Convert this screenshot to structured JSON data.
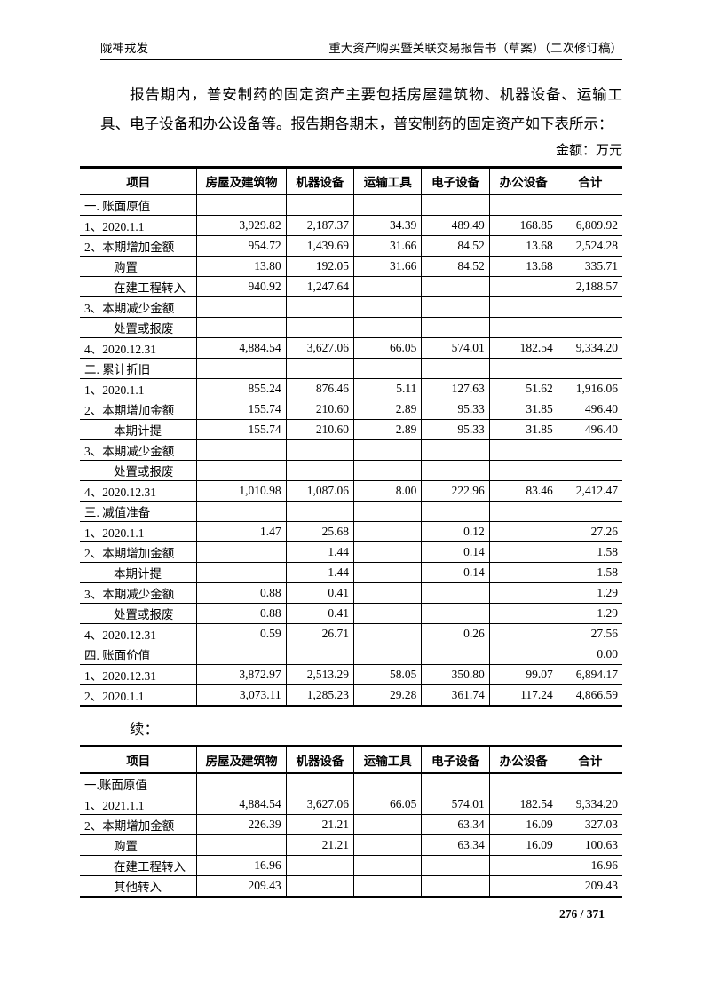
{
  "colors": {
    "ink": "#000000",
    "paper": "#ffffff"
  },
  "header": {
    "left": "陇神戎发",
    "right": "重大资产购买暨关联交易报告书（草案）（二次修订稿）"
  },
  "intro": {
    "paragraph": "报告期内，普安制药的固定资产主要包括房屋建筑物、机器设备、运输工具、电子设备和办公设备等。报告期各期末，普安制药的固定资产如下表所示：",
    "unit_label": "金额：万元"
  },
  "table1": {
    "columns": [
      "项目",
      "房屋及建筑物",
      "机器设备",
      "运输工具",
      "电子设备",
      "办公设备",
      "合计"
    ],
    "rows": [
      {
        "label": "一. 账面原值",
        "type": "section",
        "values": [
          "",
          "",
          "",
          "",
          "",
          ""
        ]
      },
      {
        "label": "1、2020.1.1",
        "type": "item",
        "values": [
          "3,929.82",
          "2,187.37",
          "34.39",
          "489.49",
          "168.85",
          "6,809.92"
        ]
      },
      {
        "label": "2、本期增加金额",
        "type": "item",
        "values": [
          "954.72",
          "1,439.69",
          "31.66",
          "84.52",
          "13.68",
          "2,524.28"
        ]
      },
      {
        "label": "购置",
        "type": "sub",
        "values": [
          "13.80",
          "192.05",
          "31.66",
          "84.52",
          "13.68",
          "335.71"
        ]
      },
      {
        "label": "在建工程转入",
        "type": "sub",
        "values": [
          "940.92",
          "1,247.64",
          "",
          "",
          "",
          "2,188.57"
        ]
      },
      {
        "label": "3、本期减少金额",
        "type": "item",
        "values": [
          "",
          "",
          "",
          "",
          "",
          ""
        ]
      },
      {
        "label": "处置或报废",
        "type": "sub",
        "values": [
          "",
          "",
          "",
          "",
          "",
          ""
        ]
      },
      {
        "label": "4、2020.12.31",
        "type": "item",
        "values": [
          "4,884.54",
          "3,627.06",
          "66.05",
          "574.01",
          "182.54",
          "9,334.20"
        ]
      },
      {
        "label": "二. 累计折旧",
        "type": "section",
        "values": [
          "",
          "",
          "",
          "",
          "",
          ""
        ]
      },
      {
        "label": "1、2020.1.1",
        "type": "item",
        "values": [
          "855.24",
          "876.46",
          "5.11",
          "127.63",
          "51.62",
          "1,916.06"
        ]
      },
      {
        "label": "2、本期增加金额",
        "type": "item",
        "values": [
          "155.74",
          "210.60",
          "2.89",
          "95.33",
          "31.85",
          "496.40"
        ]
      },
      {
        "label": "本期计提",
        "type": "sub",
        "values": [
          "155.74",
          "210.60",
          "2.89",
          "95.33",
          "31.85",
          "496.40"
        ]
      },
      {
        "label": "3、本期减少金额",
        "type": "item",
        "values": [
          "",
          "",
          "",
          "",
          "",
          ""
        ]
      },
      {
        "label": "处置或报废",
        "type": "sub",
        "values": [
          "",
          "",
          "",
          "",
          "",
          ""
        ]
      },
      {
        "label": "4、2020.12.31",
        "type": "item",
        "values": [
          "1,010.98",
          "1,087.06",
          "8.00",
          "222.96",
          "83.46",
          "2,412.47"
        ]
      },
      {
        "label": "三. 减值准备",
        "type": "section",
        "values": [
          "",
          "",
          "",
          "",
          "",
          ""
        ]
      },
      {
        "label": "1、2020.1.1",
        "type": "item",
        "values": [
          "1.47",
          "25.68",
          "",
          "0.12",
          "",
          "27.26"
        ]
      },
      {
        "label": "2、本期增加金额",
        "type": "item",
        "values": [
          "",
          "1.44",
          "",
          "0.14",
          "",
          "1.58"
        ]
      },
      {
        "label": "本期计提",
        "type": "sub",
        "values": [
          "",
          "1.44",
          "",
          "0.14",
          "",
          "1.58"
        ]
      },
      {
        "label": "3、本期减少金额",
        "type": "item",
        "values": [
          "0.88",
          "0.41",
          "",
          "",
          "",
          "1.29"
        ]
      },
      {
        "label": "处置或报废",
        "type": "sub",
        "values": [
          "0.88",
          "0.41",
          "",
          "",
          "",
          "1.29"
        ]
      },
      {
        "label": "4、2020.12.31",
        "type": "item",
        "values": [
          "0.59",
          "26.71",
          "",
          "0.26",
          "",
          "27.56"
        ]
      },
      {
        "label": "四. 账面价值",
        "type": "section",
        "values": [
          "",
          "",
          "",
          "",
          "",
          "0.00"
        ]
      },
      {
        "label": "1、2020.12.31",
        "type": "item",
        "values": [
          "3,872.97",
          "2,513.29",
          "58.05",
          "350.80",
          "99.07",
          "6,894.17"
        ]
      },
      {
        "label": "2、2020.1.1",
        "type": "item",
        "values": [
          "3,073.11",
          "1,285.23",
          "29.28",
          "361.74",
          "117.24",
          "4,866.59"
        ]
      }
    ]
  },
  "continuation_label": "续：",
  "table2": {
    "columns": [
      "项目",
      "房屋及建筑物",
      "机器设备",
      "运输工具",
      "电子设备",
      "办公设备",
      "合计"
    ],
    "rows": [
      {
        "label": "一.账面原值",
        "type": "section",
        "values": [
          "",
          "",
          "",
          "",
          "",
          ""
        ]
      },
      {
        "label": "1、2021.1.1",
        "type": "item",
        "values": [
          "4,884.54",
          "3,627.06",
          "66.05",
          "574.01",
          "182.54",
          "9,334.20"
        ]
      },
      {
        "label": "2、本期增加金额",
        "type": "item",
        "values": [
          "226.39",
          "21.21",
          "",
          "63.34",
          "16.09",
          "327.03"
        ]
      },
      {
        "label": "购置",
        "type": "sub",
        "values": [
          "",
          "21.21",
          "",
          "63.34",
          "16.09",
          "100.63"
        ]
      },
      {
        "label": "在建工程转入",
        "type": "sub",
        "values": [
          "16.96",
          "",
          "",
          "",
          "",
          "16.96"
        ]
      },
      {
        "label": "其他转入",
        "type": "sub",
        "values": [
          "209.43",
          "",
          "",
          "",
          "",
          "209.43"
        ]
      }
    ]
  },
  "footer": {
    "page_number": "276 / 371"
  }
}
